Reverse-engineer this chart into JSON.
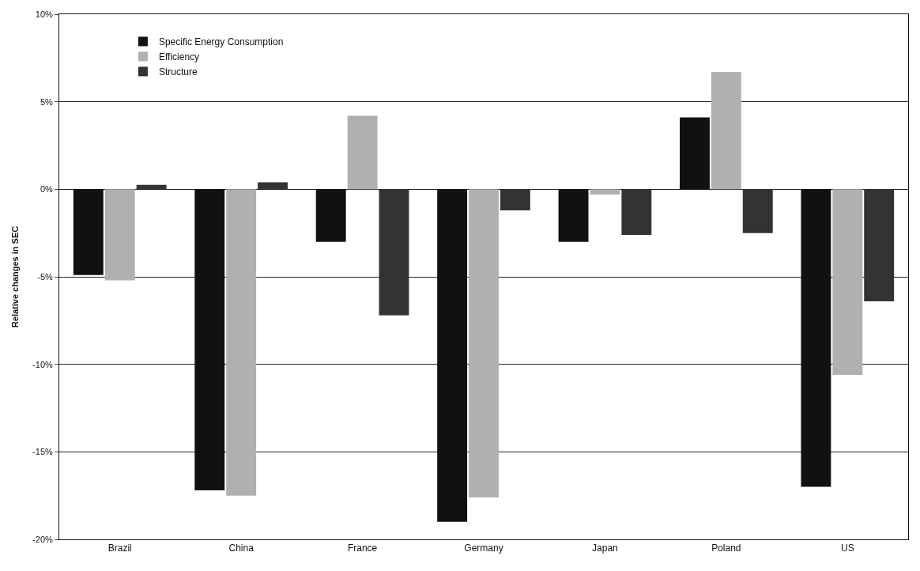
{
  "chart_data": {
    "type": "bar",
    "ylabel": "Relative changes in SEC",
    "categories": [
      "Brazil",
      "China",
      "France",
      "Germany",
      "Japan",
      "Poland",
      "US"
    ],
    "series": [
      {
        "name": "Specific Energy Consumption",
        "color": "#111111",
        "values": [
          -4.9,
          -17.2,
          -3.0,
          -19.0,
          -3.0,
          4.1,
          -17.0
        ]
      },
      {
        "name": "Efficiency",
        "color": "#b0b0b0",
        "values": [
          -5.2,
          -17.5,
          4.2,
          -17.6,
          -0.3,
          6.7,
          -10.6
        ]
      },
      {
        "name": "Structure",
        "color": "#333333",
        "values": [
          0.25,
          0.4,
          -7.2,
          -1.2,
          -2.6,
          -2.5,
          -6.4
        ]
      }
    ],
    "ylim": [
      -20,
      10
    ],
    "yticks": [
      {
        "value": -20,
        "label": "-20%"
      },
      {
        "value": -15,
        "label": "-15%"
      },
      {
        "value": -10,
        "label": "-10%"
      },
      {
        "value": -5,
        "label": "-5%"
      },
      {
        "value": 0,
        "label": "0%"
      },
      {
        "value": 5,
        "label": "5%"
      },
      {
        "value": 10,
        "label": "10%"
      }
    ],
    "grid": "y",
    "legend": "top left"
  }
}
